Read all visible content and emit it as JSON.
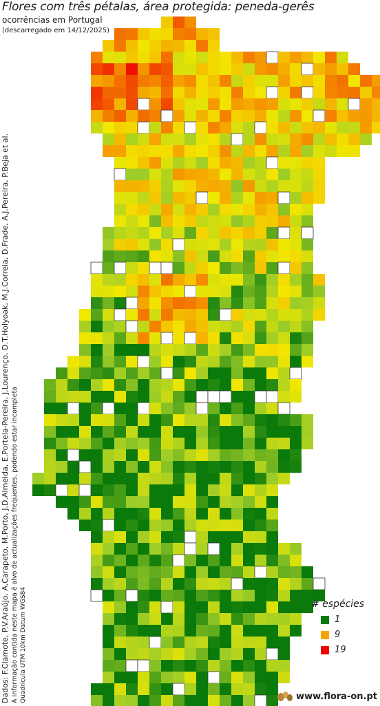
{
  "title": "Flores com três pétalas, área protegida: peneda-gerês",
  "subtitle": "ocorrências em Portugal",
  "downloaded": "(descarregado em 14/12/2025)",
  "credits": "Dados: F.Clamote, P.V.Araújo, A.Carapeto, M.Porto, J.D.Almeida, E.Portela-Pereira, J.Lourenço, D.T.Holyoak, M.J.Correia, D.Frade, A.J.Pereira, P.Beja et al.",
  "disclaimer": "A informação contida neste mapa é alvo de actualizações frequentes, podendo estar incompleta",
  "grid_info": "Quadrícula UTM 10km Datum WGS84",
  "legend": {
    "title": "# espécies",
    "items": [
      {
        "label": "1",
        "color": "#0a7a0a"
      },
      {
        "label": "9",
        "color": "#f5a400"
      },
      {
        "label": "19",
        "color": "#ee0000"
      }
    ]
  },
  "brand": "www.flora-on.pt",
  "chart_data": {
    "type": "heatmap",
    "description_scale": "species count per 10km UTM square",
    "scale_min": 1,
    "scale_mid": 9,
    "scale_max": 19,
    "colors": {
      "low": "#0a7a0a",
      "mid": "#f5a400",
      "high": "#ee0000",
      "empty": "#ffffff"
    }
  }
}
